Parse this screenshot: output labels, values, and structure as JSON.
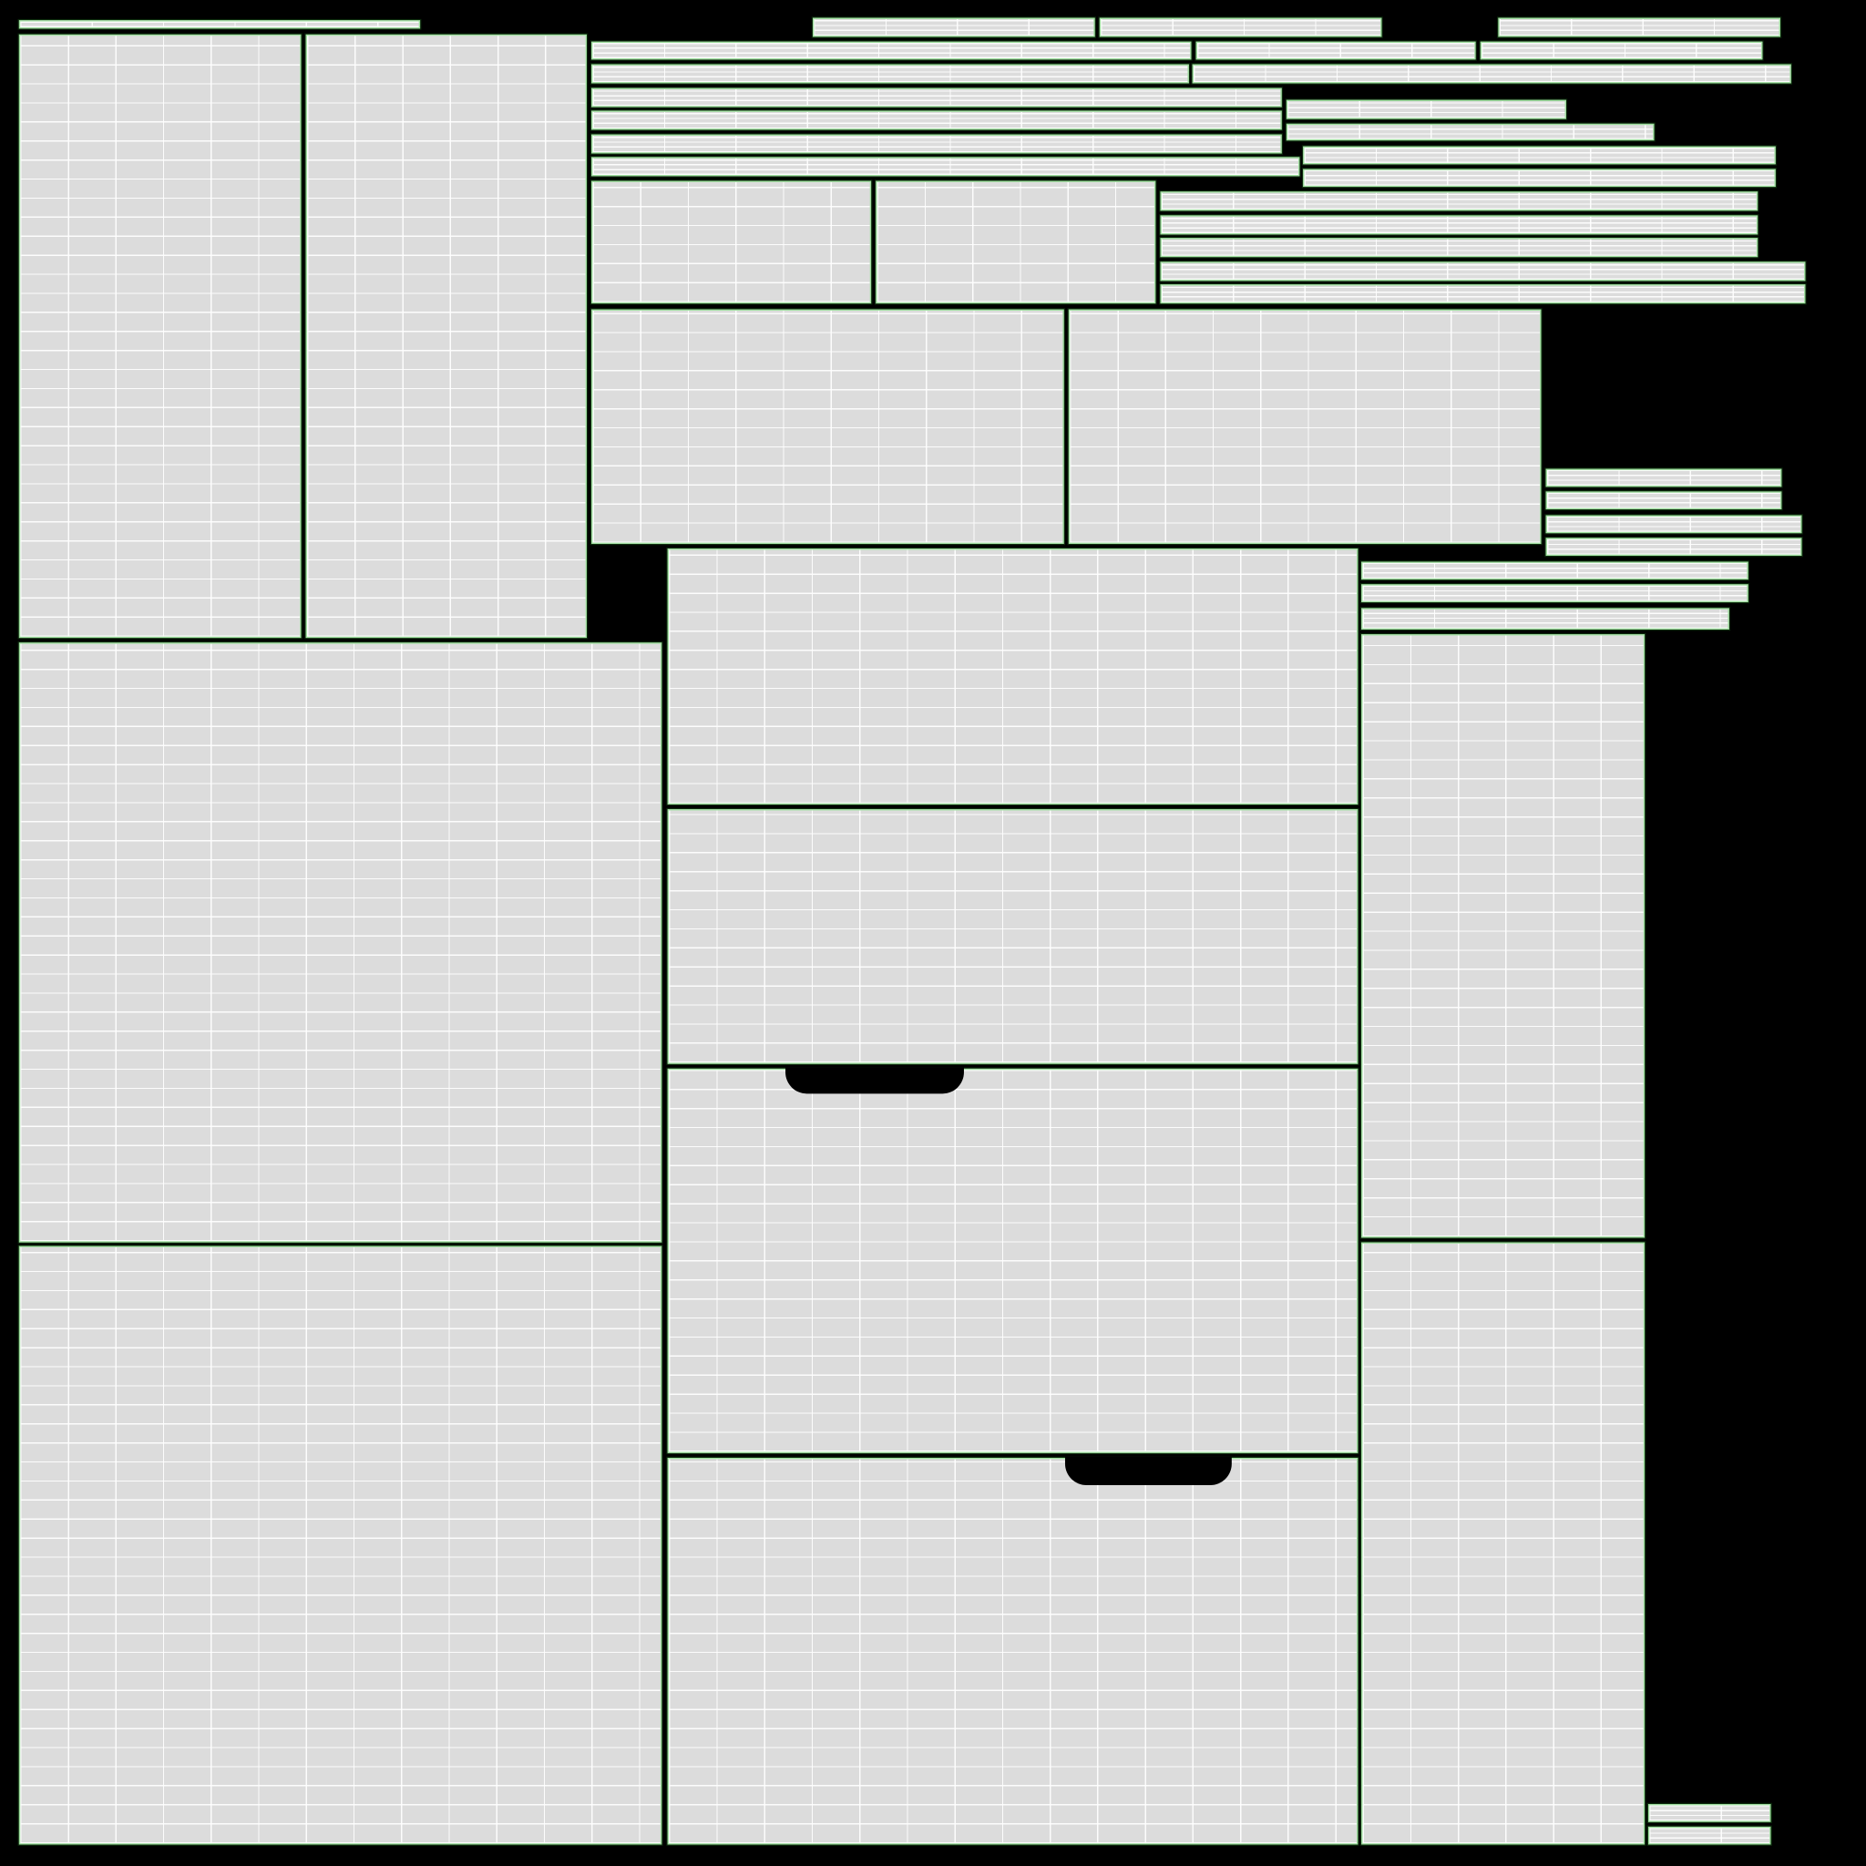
{
  "texture": {
    "background_color": "#000000",
    "island_fill_color": "#dcdcdc",
    "island_edge_color": "#9fe09f",
    "grid_line_color": "#ffffff"
  }
}
